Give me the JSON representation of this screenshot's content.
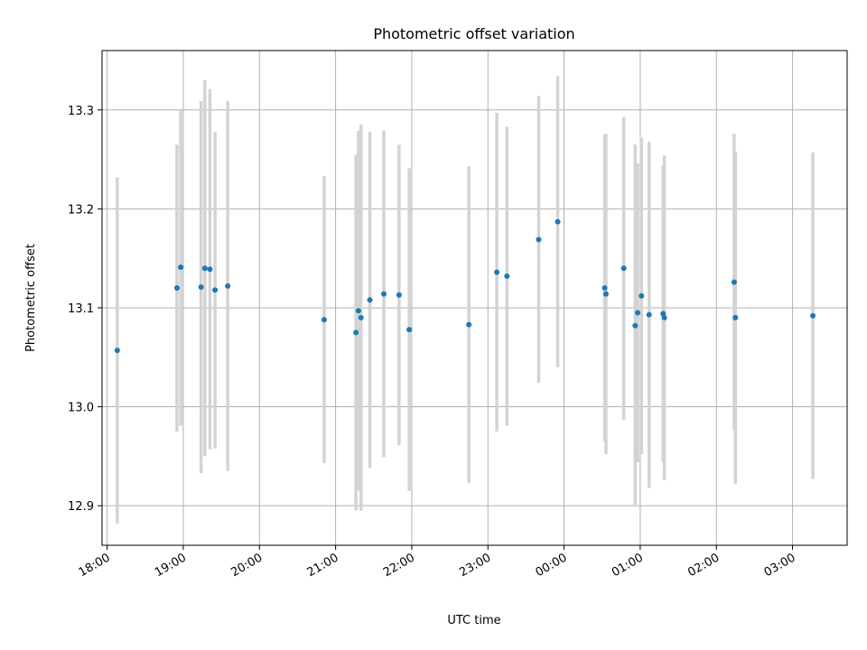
{
  "chart_data": {
    "type": "scatter",
    "title": "Photometric offset variation",
    "xlabel": "UTC time",
    "ylabel": "Photometric offset",
    "xlim": [
      "17:56",
      "03:43"
    ],
    "ylim": [
      12.86,
      13.36
    ],
    "x_ticks": [
      "18:00",
      "19:00",
      "20:00",
      "21:00",
      "22:00",
      "23:00",
      "00:00",
      "01:00",
      "02:00",
      "03:00"
    ],
    "y_ticks": [
      12.9,
      13.0,
      13.1,
      13.2,
      13.3
    ],
    "y_tick_labels": [
      "12.9",
      "13.0",
      "13.1",
      "13.2",
      "13.3"
    ],
    "grid": true,
    "series": [
      {
        "marker_color": "#1f77b4",
        "errorbar_color": "#d3d3d3",
        "points": [
          {
            "x": "18:08",
            "y": 13.057,
            "yerr": 0.175
          },
          {
            "x": "18:55",
            "y": 13.12,
            "yerr": 0.145
          },
          {
            "x": "18:58",
            "y": 13.141,
            "yerr": 0.16
          },
          {
            "x": "19:14",
            "y": 13.121,
            "yerr": 0.188
          },
          {
            "x": "19:17",
            "y": 13.14,
            "yerr": 0.19
          },
          {
            "x": "19:21",
            "y": 13.139,
            "yerr": 0.182
          },
          {
            "x": "19:25",
            "y": 13.118,
            "yerr": 0.16
          },
          {
            "x": "19:35",
            "y": 13.122,
            "yerr": 0.187
          },
          {
            "x": "20:51",
            "y": 13.088,
            "yerr": 0.145
          },
          {
            "x": "21:16",
            "y": 13.075,
            "yerr": 0.18
          },
          {
            "x": "21:18",
            "y": 13.097,
            "yerr": 0.182
          },
          {
            "x": "21:20",
            "y": 13.09,
            "yerr": 0.195
          },
          {
            "x": "21:27",
            "y": 13.108,
            "yerr": 0.17
          },
          {
            "x": "21:38",
            "y": 13.114,
            "yerr": 0.165
          },
          {
            "x": "21:50",
            "y": 13.113,
            "yerr": 0.152
          },
          {
            "x": "21:58",
            "y": 13.078,
            "yerr": 0.163
          },
          {
            "x": "22:45",
            "y": 13.083,
            "yerr": 0.16
          },
          {
            "x": "23:07",
            "y": 13.136,
            "yerr": 0.161
          },
          {
            "x": "23:15",
            "y": 13.132,
            "yerr": 0.151
          },
          {
            "x": "23:40",
            "y": 13.169,
            "yerr": 0.145
          },
          {
            "x": "23:55",
            "y": 13.187,
            "yerr": 0.147
          },
          {
            "x": "00:32",
            "y": 13.12,
            "yerr": 0.155
          },
          {
            "x": "00:33",
            "y": 13.114,
            "yerr": 0.162
          },
          {
            "x": "00:47",
            "y": 13.14,
            "yerr": 0.153
          },
          {
            "x": "00:56",
            "y": 13.082,
            "yerr": 0.183
          },
          {
            "x": "00:58",
            "y": 13.095,
            "yerr": 0.151
          },
          {
            "x": "01:01",
            "y": 13.112,
            "yerr": 0.16
          },
          {
            "x": "01:07",
            "y": 13.093,
            "yerr": 0.175
          },
          {
            "x": "01:18",
            "y": 13.094,
            "yerr": 0.15
          },
          {
            "x": "01:19",
            "y": 13.09,
            "yerr": 0.164
          },
          {
            "x": "02:14",
            "y": 13.126,
            "yerr": 0.15
          },
          {
            "x": "02:15",
            "y": 13.09,
            "yerr": 0.168
          },
          {
            "x": "03:16",
            "y": 13.092,
            "yerr": 0.165
          }
        ]
      }
    ]
  }
}
